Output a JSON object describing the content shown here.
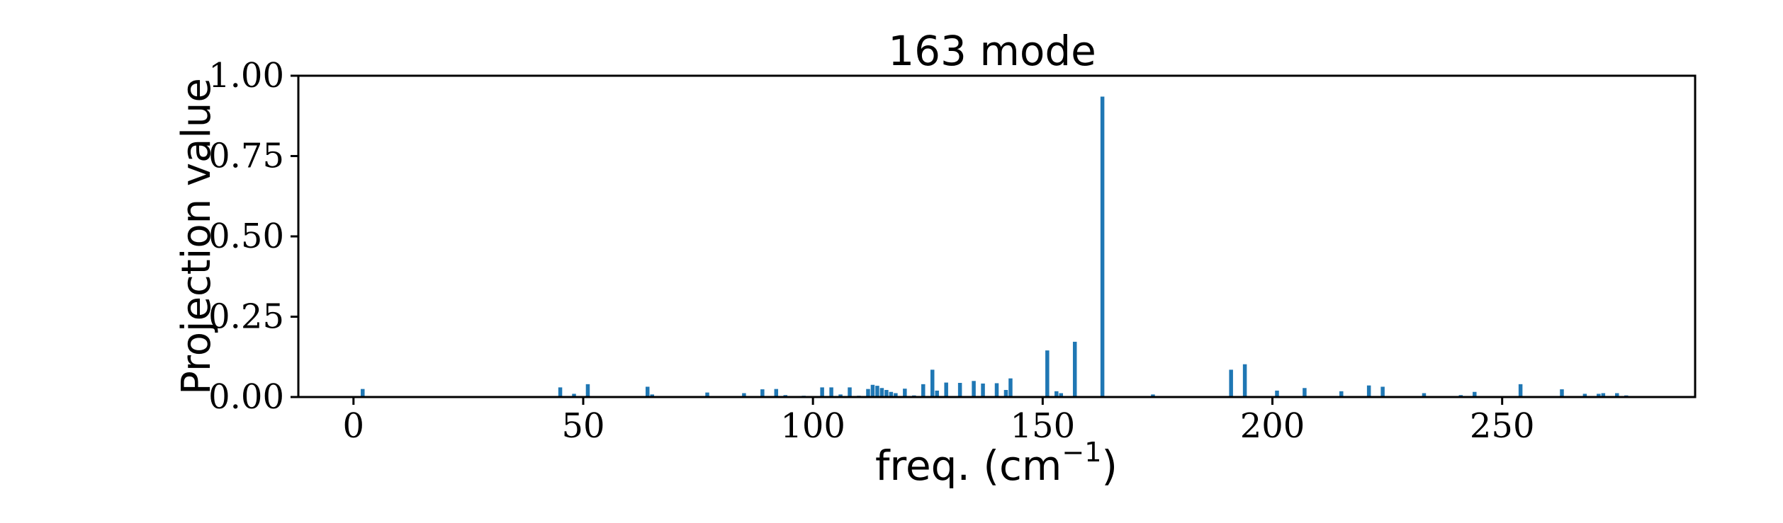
{
  "chart_data": {
    "type": "bar",
    "title": "163 mode",
    "xlabel": "freq. (cm",
    "xlabel_sup": "−1",
    "xlabel_close": ")",
    "ylabel": "Projection value",
    "xlim": [
      -12,
      292
    ],
    "ylim": [
      0,
      1.0
    ],
    "xticks": [
      0,
      50,
      100,
      150,
      200,
      250
    ],
    "xtick_labels": [
      "0",
      "50",
      "100",
      "150",
      "200",
      "250"
    ],
    "yticks": [
      0,
      0.25,
      0.5,
      0.75,
      1.0
    ],
    "ytick_labels": [
      "0.00",
      "0.25",
      "0.50",
      "0.75",
      "1.00"
    ],
    "grid": false,
    "bar_color": "#1f77b4",
    "x": [
      2,
      45,
      48,
      51,
      64,
      65,
      77,
      85,
      89,
      92,
      94,
      98,
      102,
      104,
      106,
      108,
      110,
      112,
      113,
      114,
      115,
      116,
      117,
      118,
      120,
      122,
      124,
      126,
      127,
      129,
      132,
      135,
      137,
      140,
      142,
      143,
      151,
      153,
      154,
      157,
      163,
      174,
      191,
      194,
      201,
      207,
      215,
      221,
      224,
      233,
      241,
      244,
      254,
      263,
      268,
      271,
      272,
      275,
      277
    ],
    "values": [
      0.025,
      0.03,
      0.01,
      0.04,
      0.032,
      0.008,
      0.014,
      0.012,
      0.024,
      0.025,
      0.006,
      0.004,
      0.03,
      0.03,
      0.008,
      0.03,
      0.004,
      0.025,
      0.038,
      0.035,
      0.028,
      0.022,
      0.016,
      0.012,
      0.026,
      0.005,
      0.04,
      0.085,
      0.02,
      0.045,
      0.044,
      0.05,
      0.042,
      0.043,
      0.022,
      0.058,
      0.145,
      0.018,
      0.012,
      0.172,
      0.935,
      0.008,
      0.085,
      0.102,
      0.02,
      0.028,
      0.018,
      0.036,
      0.032,
      0.012,
      0.006,
      0.016,
      0.04,
      0.024,
      0.01,
      0.01,
      0.012,
      0.012,
      0.005
    ]
  }
}
